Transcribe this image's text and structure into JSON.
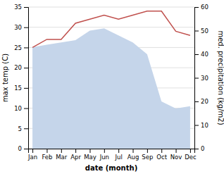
{
  "chart_data": {
    "type": "line",
    "categories": [
      "Jan",
      "Feb",
      "Mar",
      "Apr",
      "May",
      "Jun",
      "Jul",
      "Aug",
      "Sep",
      "Oct",
      "Nov",
      "Dec"
    ],
    "series": [
      {
        "name": "med. precipitation (kg/m2)",
        "type": "area",
        "axis": "y2",
        "color": "#c5d5ea",
        "values": [
          43,
          44,
          45,
          46,
          50,
          51,
          48,
          45,
          40,
          20,
          17,
          18
        ]
      },
      {
        "name": "max temp (C)",
        "type": "line",
        "color": "#c0504d",
        "values": [
          25,
          27,
          27,
          31,
          32,
          33,
          32,
          33,
          34,
          34,
          29,
          28
        ]
      }
    ],
    "xlabel": "date (month)",
    "ylabel": "max temp (C)",
    "y2label": "med. precipitation (kg/m2)",
    "ylim": [
      0,
      35
    ],
    "yticks": [
      0,
      5,
      10,
      15,
      20,
      25,
      30,
      35
    ],
    "y2lim": [
      0,
      60
    ],
    "y2ticks": [
      0,
      10,
      20,
      30,
      40,
      50,
      60
    ],
    "grid": true
  }
}
